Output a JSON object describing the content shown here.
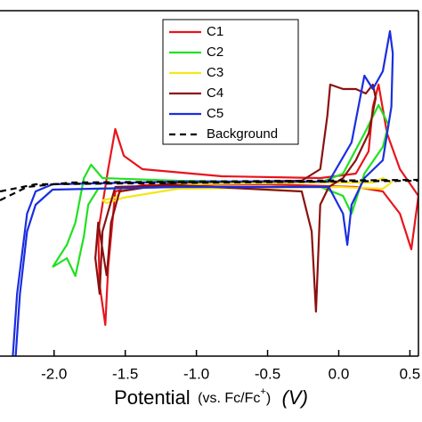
{
  "chart_data": {
    "type": "line",
    "x_label": [
      "Potential",
      "(vs. Fc/Fc",
      "+",
      ")",
      "(V)"
    ],
    "xlim": [
      -2.38,
      0.56
    ],
    "ylim": [
      -194,
      194
    ],
    "xticks": [
      {
        "value": -2.0,
        "label": "-2.0"
      },
      {
        "value": -1.5,
        "label": "-1.5"
      },
      {
        "value": -1.0,
        "label": "-1.0"
      },
      {
        "value": -0.5,
        "label": "-0.5"
      },
      {
        "value": 0.0,
        "label": "0.0"
      },
      {
        "value": 0.5,
        "label": "0.5"
      }
    ],
    "legend": "top-center",
    "series": [
      {
        "name": "C1",
        "color": "#e8141c",
        "dashed": false,
        "x": [
          -1.66,
          -1.62,
          -1.57,
          -1.51,
          -1.38,
          -0.82,
          -0.13,
          0.12,
          0.21,
          0.24,
          0.28,
          0.34,
          0.43,
          0.56,
          0.51,
          0.43,
          0.31,
          0.12,
          -0.51,
          -1.38,
          -1.57,
          -1.62,
          -1.64,
          -1.68,
          -1.69,
          -1.66
        ],
        "values": [
          -24,
          16,
          61,
          31,
          16,
          8,
          6,
          11,
          36,
          86,
          111,
          56,
          16,
          -14,
          -74,
          -34,
          -9,
          -4,
          -1,
          -2,
          -9,
          -94,
          -159,
          -114,
          -54,
          -24
        ]
      },
      {
        "name": "C2",
        "color": "#22e022",
        "dashed": false,
        "x": [
          -2.01,
          -1.91,
          -1.85,
          -1.79,
          -1.74,
          -1.66,
          -1.13,
          -0.13,
          0.03,
          0.18,
          0.28,
          0.35,
          0.31,
          0.18,
          0.09,
          0.03,
          -0.13,
          -1.13,
          -1.69,
          -1.76,
          -1.79,
          -1.85,
          -1.91,
          -2.01
        ],
        "values": [
          -94,
          -69,
          -44,
          6,
          21,
          6,
          3,
          1,
          11,
          56,
          88,
          66,
          41,
          11,
          -34,
          -14,
          -4,
          -4,
          -6,
          -24,
          -59,
          -104,
          -84,
          -94
        ]
      },
      {
        "name": "C3",
        "color": "#f5e61a",
        "dashed": false,
        "x": [
          -1.66,
          -1.57,
          -1.51,
          -1.38,
          -1.13,
          -0.13,
          0.24,
          0.31,
          0.37,
          0.31,
          -0.01,
          -1.13,
          -1.51,
          -1.63,
          -1.66
        ],
        "values": [
          -19,
          -16,
          -6,
          -4,
          -1,
          1,
          1,
          6,
          1,
          -6,
          -4,
          -6,
          -16,
          -22,
          -19
        ]
      },
      {
        "name": "C4",
        "color": "#8b1010",
        "dashed": false,
        "x": [
          -1.63,
          -1.6,
          -1.54,
          -1.13,
          -0.26,
          -0.13,
          -0.08,
          -0.06,
          0.03,
          0.12,
          0.19,
          0.24,
          0.26,
          0.21,
          0.12,
          0.03,
          -0.07,
          -0.13,
          -0.16,
          -0.19,
          -0.26,
          -1.13,
          -1.57,
          -1.66,
          -1.68,
          -1.71,
          -1.69,
          -1.63
        ],
        "values": [
          -104,
          -44,
          -9,
          1,
          3,
          16,
          76,
          111,
          106,
          106,
          101,
          111,
          96,
          56,
          26,
          6,
          -4,
          -24,
          -144,
          -54,
          -9,
          -2,
          -4,
          -54,
          -124,
          -84,
          -44,
          -104
        ]
      },
      {
        "name": "C5",
        "color": "#1a2ee0",
        "dashed": false,
        "x": [
          -2.29,
          -2.26,
          -2.19,
          -2.13,
          -2.01,
          -1.13,
          -0.07,
          0.09,
          0.15,
          0.18,
          0.24,
          0.31,
          0.36,
          0.38,
          0.37,
          0.31,
          0.18,
          0.09,
          0.06,
          0.03,
          -0.07,
          -1.13,
          -2.01,
          -2.13,
          -2.19,
          -2.24,
          -2.27
        ],
        "values": [
          -194,
          -124,
          -34,
          -9,
          -1,
          2,
          2,
          46,
          96,
          121,
          106,
          126,
          171,
          146,
          86,
          26,
          6,
          -24,
          -69,
          -34,
          -4,
          -4,
          -7,
          -24,
          -54,
          -124,
          -194
        ]
      },
      {
        "name": "Background",
        "color": "#000000",
        "dashed": true,
        "x": [
          -2.38,
          -2.19,
          -1.88,
          0.56,
          null,
          -2.38,
          -2.13,
          0.56
        ],
        "values": [
          -19,
          -4,
          1,
          4,
          null,
          -9,
          -1,
          3
        ]
      }
    ]
  }
}
